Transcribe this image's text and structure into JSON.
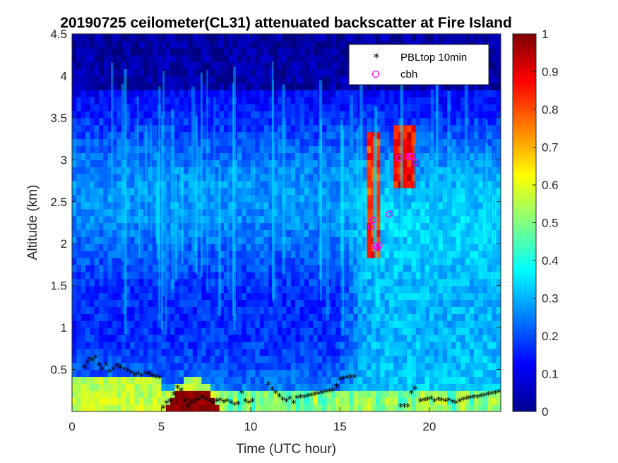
{
  "chart_data": {
    "type": "heatmap",
    "title": "20190725 ceilometer(CL31) attenuated backscatter at Fire Island",
    "xlabel": "Time (UTC hour)",
    "ylabel": "Altitude (km)",
    "xlim": [
      0,
      24
    ],
    "ylim": [
      0,
      4.5
    ],
    "x_ticks": [
      "0",
      "5",
      "10",
      "15",
      "20"
    ],
    "y_ticks": [
      "0.5",
      "1",
      "1.5",
      "2",
      "2.5",
      "3",
      "3.5",
      "4",
      "4.5"
    ],
    "colorbar": {
      "range": [
        0,
        1
      ],
      "ticks": [
        "0",
        "0.1",
        "0.2",
        "0.3",
        "0.4",
        "0.5",
        "0.6",
        "0.7",
        "0.8",
        "0.9",
        "1"
      ],
      "colormap": "jet"
    },
    "legend": {
      "placement": "top-right",
      "entries": [
        {
          "label": "PBLtop 10min",
          "marker": "asterisk",
          "color": "#000000"
        },
        {
          "label": "cbh",
          "marker": "circle",
          "color": "#ff00ff"
        }
      ]
    },
    "series": [
      {
        "name": "PBLtop 10min",
        "x": [
          0.7,
          0.85,
          1.0,
          1.15,
          1.3,
          1.5,
          1.7,
          1.9,
          2.1,
          2.3,
          2.5,
          2.7,
          2.9,
          3.1,
          3.3,
          3.5,
          3.7,
          3.9,
          4.1,
          4.3,
          4.5,
          4.7,
          4.9,
          5.1,
          5.3,
          5.5,
          5.7,
          5.9,
          6.1,
          6.3,
          6.5,
          6.7,
          6.9,
          7.1,
          7.3,
          7.5,
          7.7,
          7.9,
          8.1,
          8.3,
          8.5,
          8.7,
          8.9,
          9.1,
          9.3,
          9.5,
          9.7,
          9.9,
          10.1,
          11.0,
          11.2,
          11.4,
          11.6,
          11.8,
          12.0,
          12.2,
          12.4,
          12.6,
          12.8,
          13.0,
          13.2,
          13.4,
          13.6,
          13.8,
          14.0,
          14.2,
          14.4,
          14.6,
          14.8,
          15.0,
          15.2,
          15.4,
          15.6,
          15.8,
          18.4,
          18.6,
          18.8,
          19.0,
          19.2,
          19.5,
          19.7,
          19.9,
          20.1,
          20.3,
          20.5,
          20.7,
          20.9,
          21.1,
          21.3,
          21.5,
          21.7,
          21.9,
          22.1,
          22.3,
          22.5,
          22.7,
          22.9,
          23.1,
          23.3,
          23.5,
          23.7,
          23.9
        ],
        "y": [
          0.52,
          0.58,
          0.62,
          0.6,
          0.64,
          0.55,
          0.5,
          0.55,
          0.47,
          0.5,
          0.54,
          0.52,
          0.5,
          0.48,
          0.46,
          0.43,
          0.44,
          0.42,
          0.45,
          0.44,
          0.42,
          0.41,
          0.4,
          0.04,
          0.1,
          0.12,
          0.2,
          0.28,
          0.25,
          0.12,
          0.06,
          0.1,
          0.12,
          0.14,
          0.16,
          0.14,
          0.12,
          0.1,
          0.12,
          0.13,
          0.11,
          0.12,
          0.1,
          0.08,
          0.09,
          0.22,
          0.12,
          0.1,
          0.12,
          0.32,
          0.26,
          0.22,
          0.18,
          0.14,
          0.12,
          0.15,
          0.1,
          0.16,
          0.17,
          0.17,
          0.18,
          0.19,
          0.2,
          0.21,
          0.22,
          0.23,
          0.24,
          0.25,
          0.3,
          0.38,
          0.39,
          0.4,
          0.41,
          0.41,
          0.06,
          0.06,
          0.06,
          0.22,
          0.27,
          0.12,
          0.13,
          0.14,
          0.15,
          0.12,
          0.14,
          0.13,
          0.12,
          0.13,
          0.11,
          0.1,
          0.12,
          0.14,
          0.15,
          0.16,
          0.17,
          0.17,
          0.18,
          0.19,
          0.2,
          0.21,
          0.22,
          0.23
        ]
      },
      {
        "name": "cbh",
        "x": [
          16.75,
          16.85,
          17.0,
          17.1,
          17.2,
          17.75,
          18.3,
          18.85,
          19.0,
          19.2
        ],
        "y": [
          2.2,
          2.28,
          1.97,
          1.95,
          1.98,
          2.35,
          3.02,
          3.04,
          3.04,
          2.97
        ]
      }
    ],
    "features": [
      {
        "kind": "boundary_layer_aerosol",
        "x": [
          0,
          5
        ],
        "y_top": 0.45,
        "value": 0.55
      },
      {
        "kind": "dense_layer",
        "x": [
          5,
          8.5
        ],
        "y_top": 0.28,
        "value": 1.0
      },
      {
        "kind": "cloud",
        "x": [
          16.5,
          17.3
        ],
        "y": [
          1.8,
          3.3
        ],
        "value": 0.95
      },
      {
        "kind": "cloud",
        "x": [
          18.1,
          19.3
        ],
        "y": [
          2.7,
          3.4
        ],
        "value": 1.0
      }
    ]
  }
}
